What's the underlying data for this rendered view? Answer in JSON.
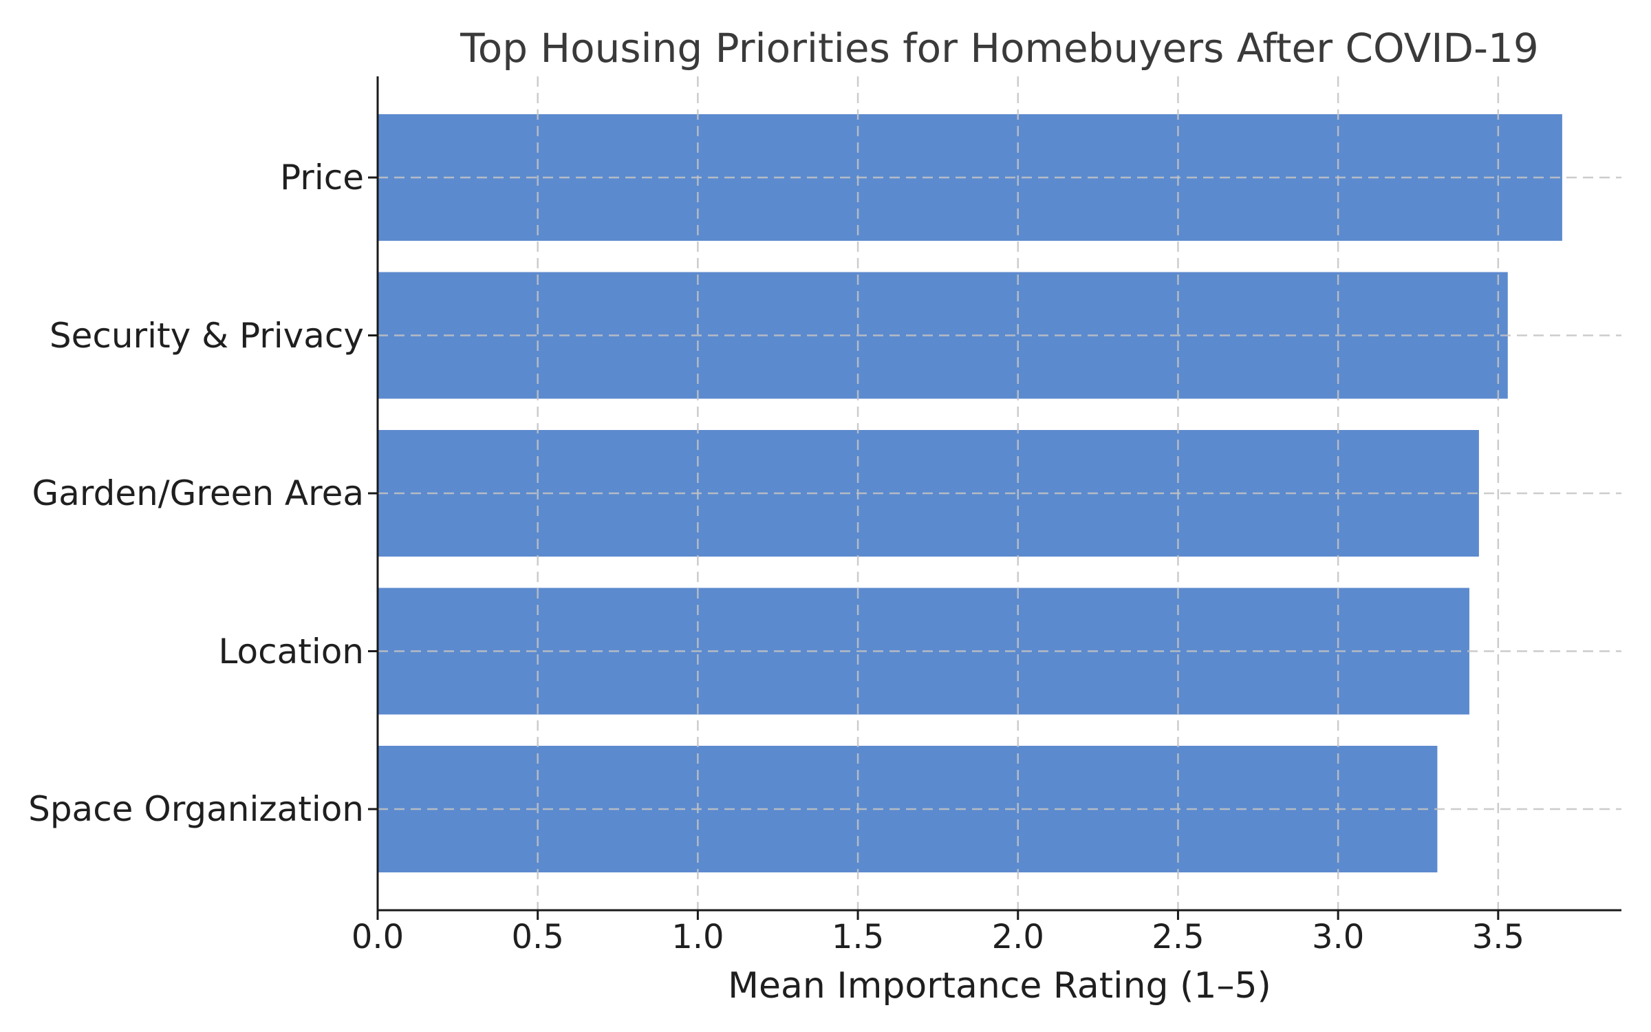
{
  "chart_data": {
    "type": "bar",
    "orientation": "horizontal",
    "title": "Top Housing Priorities for Homebuyers After COVID-19",
    "xlabel": "Mean Importance Rating (1–5)",
    "ylabel": "",
    "categories": [
      "Price",
      "Security & Privacy",
      "Garden/Green Area",
      "Location",
      "Space Organization"
    ],
    "values": [
      3.7,
      3.53,
      3.44,
      3.41,
      3.31
    ],
    "xlim": [
      0,
      3.885
    ],
    "xticks": [
      0,
      0.5,
      1,
      1.5,
      2,
      2.5,
      3,
      3.5
    ],
    "xtick_labels": [
      "0.0",
      "0.5",
      "1.0",
      "1.5",
      "2.0",
      "2.5",
      "3.0",
      "3.5"
    ],
    "grid": true,
    "grid_style": "dashed",
    "grid_above_bars": true,
    "legend": null,
    "bar_color": "#5c8ace",
    "grid_color": "#c3c3c3",
    "axis_color": "#1a1a1a",
    "text_color": "#1f1f1f",
    "title_color": "#3a3a3a",
    "background_color": "#ffffff"
  }
}
